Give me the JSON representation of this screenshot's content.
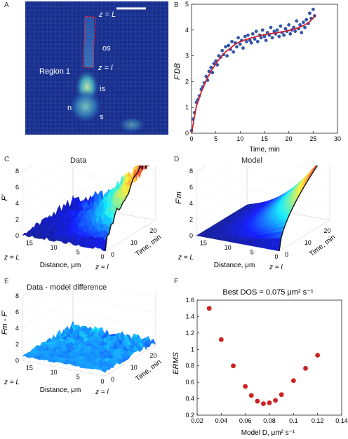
{
  "panels": {
    "A": {
      "letter": "A",
      "labels": {
        "zL": "z = L",
        "os": "os",
        "zl": "z = l",
        "region": "Region 1",
        "is": "is",
        "n": "n",
        "s": "s"
      }
    },
    "B": {
      "letter": "B"
    },
    "C": {
      "letter": "C",
      "title": "Data",
      "zlabel": "F′",
      "ylabel": "Distance, μm",
      "xlabel": "Time, min",
      "zL": "z = L",
      "zl": "z = l"
    },
    "D": {
      "letter": "D",
      "title": "Model",
      "zlabel": "F′m",
      "ylabel": "Distance, μm",
      "xlabel": "Time, min",
      "zL": "z = L",
      "zl": "z = l"
    },
    "E": {
      "letter": "E",
      "title": "Data - model difference",
      "zlabel": "Fm - F′",
      "ylabel": "Distance, μm",
      "xlabel": "Time, min",
      "zL": "z = L",
      "zl": "z = l"
    },
    "F": {
      "letter": "F"
    }
  },
  "colors": {
    "fit_line": "#cc2233",
    "points_B": "#3355aa",
    "points_F": "#cc2222",
    "micrograph_bg": "#1a2f8a"
  },
  "chart_data": [
    {
      "id": "B",
      "type": "scatter",
      "title": "",
      "xlabel": "Time, min",
      "ylabel": "F′DB",
      "xlim": [
        0,
        30
      ],
      "ylim": [
        0,
        5
      ],
      "xticks": [
        0,
        5,
        10,
        15,
        20,
        25,
        30
      ],
      "yticks": [
        0,
        1,
        2,
        3,
        4,
        5
      ],
      "series": [
        {
          "type": "scatter",
          "x": [
            0.0,
            0.3,
            0.6,
            1.0,
            1.3,
            1.6,
            2.0,
            2.3,
            2.6,
            3.0,
            3.3,
            3.6,
            4.0,
            4.3,
            4.6,
            5.0,
            5.3,
            5.6,
            6.0,
            6.3,
            6.6,
            7.0,
            7.3,
            7.6,
            8.0,
            8.3,
            8.6,
            9.0,
            9.3,
            9.6,
            10.0,
            10.3,
            10.6,
            11.0,
            11.3,
            11.6,
            12.0,
            12.3,
            12.6,
            13.0,
            13.3,
            13.6,
            14.0,
            14.3,
            14.6,
            15.0,
            15.3,
            15.6,
            16.0,
            16.3,
            16.6,
            17.0,
            17.3,
            17.6,
            18.0,
            18.3,
            18.6,
            19.0,
            19.3,
            19.6,
            20.0,
            20.3,
            20.6,
            21.0,
            21.3,
            21.6,
            22.0,
            22.3,
            22.6,
            23.0,
            23.3,
            23.6,
            24.0,
            24.3,
            24.6,
            25.0,
            25.3
          ],
          "y": [
            0.1,
            0.55,
            0.8,
            1.2,
            1.3,
            1.45,
            1.7,
            1.8,
            1.95,
            2.2,
            2.05,
            2.4,
            2.55,
            2.35,
            2.7,
            2.8,
            2.65,
            3.0,
            2.95,
            3.2,
            3.05,
            3.35,
            3.0,
            3.4,
            3.25,
            3.55,
            3.15,
            3.5,
            3.35,
            3.7,
            3.45,
            3.6,
            3.3,
            3.75,
            3.55,
            3.8,
            3.6,
            3.5,
            3.85,
            3.65,
            3.95,
            3.55,
            3.8,
            3.7,
            4.0,
            3.75,
            3.6,
            3.9,
            3.8,
            4.1,
            3.7,
            3.95,
            3.85,
            4.0,
            3.75,
            4.15,
            3.9,
            3.8,
            4.05,
            3.95,
            4.2,
            3.85,
            4.0,
            4.1,
            3.95,
            4.35,
            4.05,
            4.2,
            3.9,
            4.3,
            4.1,
            4.4,
            4.25,
            4.65,
            4.45,
            4.8,
            4.55
          ]
        },
        {
          "type": "line",
          "x": [
            0,
            1,
            2,
            3,
            4,
            5,
            6,
            7,
            8,
            9,
            10,
            11,
            12,
            13,
            14,
            15,
            16,
            17,
            18,
            19,
            20,
            21,
            22,
            23,
            24,
            25,
            25.5
          ],
          "y": [
            0.0,
            1.05,
            1.6,
            2.05,
            2.4,
            2.7,
            2.95,
            3.15,
            3.3,
            3.45,
            3.55,
            3.62,
            3.68,
            3.73,
            3.78,
            3.82,
            3.85,
            3.88,
            3.91,
            3.94,
            3.98,
            4.03,
            4.09,
            4.17,
            4.28,
            4.45,
            4.58
          ]
        }
      ]
    },
    {
      "id": "F",
      "type": "scatter",
      "title": "Best DOS = 0.075 μm² s⁻¹",
      "xlabel": "Model D, μm² s⁻¹",
      "ylabel": "ERMS",
      "xlim": [
        0.02,
        0.14
      ],
      "ylim": [
        0.2,
        1.6
      ],
      "xticks": [
        0.02,
        0.04,
        0.06,
        0.08,
        0.1,
        0.12,
        0.14
      ],
      "yticks": [
        0.2,
        0.4,
        0.6,
        0.8,
        1,
        1.2,
        1.4,
        1.6
      ],
      "series": [
        {
          "x": [
            0.03,
            0.04,
            0.05,
            0.06,
            0.065,
            0.07,
            0.075,
            0.08,
            0.085,
            0.09,
            0.1,
            0.11,
            0.12
          ],
          "y": [
            1.5,
            1.12,
            0.8,
            0.55,
            0.44,
            0.37,
            0.34,
            0.35,
            0.38,
            0.45,
            0.62,
            0.77,
            0.93
          ]
        }
      ]
    },
    {
      "id": "C",
      "type": "surface",
      "zlim": [
        0,
        8
      ],
      "zticks": [
        0,
        2,
        4,
        6,
        8
      ],
      "distance_ticks": [
        15,
        10,
        5,
        0
      ],
      "time_ticks": [
        0,
        10,
        20
      ]
    },
    {
      "id": "D",
      "type": "surface",
      "zlim": [
        0,
        8
      ],
      "zticks": [
        0,
        2,
        4,
        6,
        8
      ],
      "distance_ticks": [
        15,
        10,
        5,
        0
      ],
      "time_ticks": [
        0,
        10,
        20
      ]
    },
    {
      "id": "E",
      "type": "surface",
      "zlim": [
        0,
        8
      ],
      "zticks": [
        0,
        2,
        4,
        6,
        8
      ],
      "distance_ticks": [
        15,
        10,
        5,
        0
      ],
      "time_ticks": [
        0,
        10,
        20
      ]
    }
  ]
}
